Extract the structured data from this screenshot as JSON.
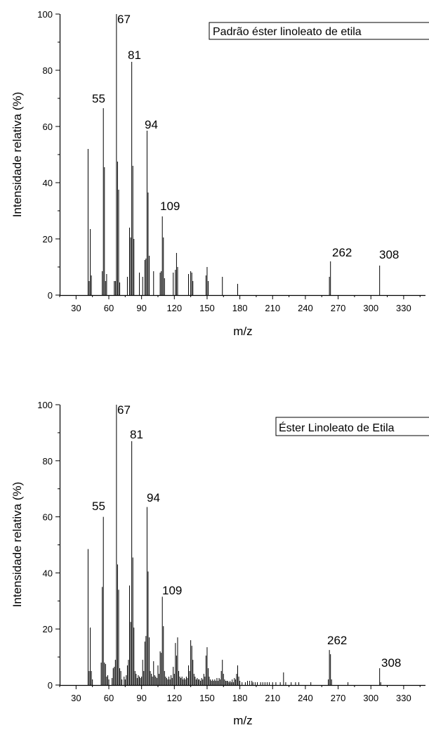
{
  "chart_data": [
    {
      "type": "bar",
      "xlabel": "m/z",
      "ylabel": "Intensidade relativa (%)",
      "xlim": [
        15,
        350
      ],
      "ylim": [
        0,
        100
      ],
      "x_ticks": [
        30,
        60,
        90,
        120,
        150,
        180,
        210,
        240,
        270,
        300,
        330
      ],
      "y_ticks": [
        0,
        20,
        40,
        60,
        80,
        100
      ],
      "legend": "Padrão éster linoleato de etila",
      "legend_placement": "top-right",
      "grid": false,
      "peak_labels": [
        "67",
        "81",
        "55",
        "94",
        "109",
        "262",
        "308"
      ],
      "peaks": [
        {
          "x": 41,
          "y": 52
        },
        {
          "x": 42,
          "y": 5
        },
        {
          "x": 43,
          "y": 23.5
        },
        {
          "x": 44,
          "y": 7
        },
        {
          "x": 54,
          "y": 8.5
        },
        {
          "x": 55,
          "y": 66.5
        },
        {
          "x": 56,
          "y": 45.5
        },
        {
          "x": 57,
          "y": 5
        },
        {
          "x": 58,
          "y": 7.5
        },
        {
          "x": 65,
          "y": 5
        },
        {
          "x": 66,
          "y": 5
        },
        {
          "x": 67,
          "y": 100
        },
        {
          "x": 68,
          "y": 47.5
        },
        {
          "x": 69,
          "y": 37.5
        },
        {
          "x": 70,
          "y": 4.5
        },
        {
          "x": 77,
          "y": 6.5
        },
        {
          "x": 79,
          "y": 24
        },
        {
          "x": 80,
          "y": 20.5
        },
        {
          "x": 81,
          "y": 83
        },
        {
          "x": 82,
          "y": 46
        },
        {
          "x": 83,
          "y": 20
        },
        {
          "x": 88,
          "y": 8
        },
        {
          "x": 91,
          "y": 6.5
        },
        {
          "x": 93,
          "y": 12.5
        },
        {
          "x": 94,
          "y": 13
        },
        {
          "x": 95,
          "y": 58.5
        },
        {
          "x": 96,
          "y": 36.5
        },
        {
          "x": 97,
          "y": 14
        },
        {
          "x": 101,
          "y": 8.5
        },
        {
          "x": 107,
          "y": 8
        },
        {
          "x": 108,
          "y": 8.5
        },
        {
          "x": 109,
          "y": 28
        },
        {
          "x": 110,
          "y": 20.5
        },
        {
          "x": 111,
          "y": 6
        },
        {
          "x": 119,
          "y": 8
        },
        {
          "x": 121,
          "y": 9
        },
        {
          "x": 122,
          "y": 15
        },
        {
          "x": 123,
          "y": 10
        },
        {
          "x": 133,
          "y": 7.5
        },
        {
          "x": 135,
          "y": 8.5
        },
        {
          "x": 136,
          "y": 8
        },
        {
          "x": 137,
          "y": 5
        },
        {
          "x": 149,
          "y": 7
        },
        {
          "x": 150,
          "y": 10
        },
        {
          "x": 151,
          "y": 5
        },
        {
          "x": 164,
          "y": 6.5
        },
        {
          "x": 178,
          "y": 4
        },
        {
          "x": 262,
          "y": 6.5
        },
        {
          "x": 263,
          "y": 12
        },
        {
          "x": 308,
          "y": 10.5
        }
      ]
    },
    {
      "type": "bar",
      "xlabel": "m/z",
      "ylabel": "Intensidade relativa (%)",
      "xlim": [
        15,
        350
      ],
      "ylim": [
        0,
        100
      ],
      "x_ticks": [
        30,
        60,
        90,
        120,
        150,
        180,
        210,
        240,
        270,
        300,
        330
      ],
      "y_ticks": [
        0,
        20,
        40,
        60,
        80,
        100
      ],
      "legend": "Éster Linoleato de Etila",
      "legend_placement": "top-right",
      "grid": false,
      "peak_labels": [
        "67",
        "81",
        "55",
        "94",
        "109",
        "262",
        "308"
      ],
      "peaks": [
        {
          "x": 41,
          "y": 48.5
        },
        {
          "x": 42,
          "y": 5
        },
        {
          "x": 43,
          "y": 20.5
        },
        {
          "x": 44,
          "y": 5
        },
        {
          "x": 45,
          "y": 2
        },
        {
          "x": 53,
          "y": 8
        },
        {
          "x": 54,
          "y": 35
        },
        {
          "x": 55,
          "y": 60
        },
        {
          "x": 56,
          "y": 8
        },
        {
          "x": 57,
          "y": 7.5
        },
        {
          "x": 58,
          "y": 3
        },
        {
          "x": 59,
          "y": 3.5
        },
        {
          "x": 60,
          "y": 2
        },
        {
          "x": 63,
          "y": 2.5
        },
        {
          "x": 64,
          "y": 6
        },
        {
          "x": 65,
          "y": 6.5
        },
        {
          "x": 66,
          "y": 9
        },
        {
          "x": 67,
          "y": 100
        },
        {
          "x": 68,
          "y": 43
        },
        {
          "x": 69,
          "y": 34
        },
        {
          "x": 70,
          "y": 6
        },
        {
          "x": 71,
          "y": 5
        },
        {
          "x": 72,
          "y": 2
        },
        {
          "x": 74,
          "y": 3
        },
        {
          "x": 75,
          "y": 2
        },
        {
          "x": 76,
          "y": 3.5
        },
        {
          "x": 77,
          "y": 7
        },
        {
          "x": 78,
          "y": 9
        },
        {
          "x": 79,
          "y": 35.5
        },
        {
          "x": 80,
          "y": 22.5
        },
        {
          "x": 81,
          "y": 87
        },
        {
          "x": 82,
          "y": 45.5
        },
        {
          "x": 83,
          "y": 20.5
        },
        {
          "x": 84,
          "y": 5
        },
        {
          "x": 85,
          "y": 4
        },
        {
          "x": 86,
          "y": 2.5
        },
        {
          "x": 87,
          "y": 3.5
        },
        {
          "x": 88,
          "y": 3
        },
        {
          "x": 89,
          "y": 2.5
        },
        {
          "x": 90,
          "y": 3
        },
        {
          "x": 91,
          "y": 9
        },
        {
          "x": 92,
          "y": 5
        },
        {
          "x": 93,
          "y": 15.5
        },
        {
          "x": 94,
          "y": 17.5
        },
        {
          "x": 95,
          "y": 63.5
        },
        {
          "x": 96,
          "y": 40.5
        },
        {
          "x": 97,
          "y": 17
        },
        {
          "x": 98,
          "y": 5
        },
        {
          "x": 99,
          "y": 4
        },
        {
          "x": 100,
          "y": 3
        },
        {
          "x": 101,
          "y": 8.5
        },
        {
          "x": 102,
          "y": 3.5
        },
        {
          "x": 103,
          "y": 3
        },
        {
          "x": 104,
          "y": 2.5
        },
        {
          "x": 105,
          "y": 7
        },
        {
          "x": 106,
          "y": 4
        },
        {
          "x": 107,
          "y": 12
        },
        {
          "x": 108,
          "y": 11.5
        },
        {
          "x": 109,
          "y": 31.5
        },
        {
          "x": 110,
          "y": 21
        },
        {
          "x": 111,
          "y": 5
        },
        {
          "x": 112,
          "y": 3
        },
        {
          "x": 113,
          "y": 2.5
        },
        {
          "x": 114,
          "y": 2
        },
        {
          "x": 115,
          "y": 3
        },
        {
          "x": 116,
          "y": 2
        },
        {
          "x": 117,
          "y": 3.5
        },
        {
          "x": 118,
          "y": 2.5
        },
        {
          "x": 119,
          "y": 6.5
        },
        {
          "x": 120,
          "y": 4
        },
        {
          "x": 121,
          "y": 15
        },
        {
          "x": 122,
          "y": 10.5
        },
        {
          "x": 123,
          "y": 17
        },
        {
          "x": 124,
          "y": 5
        },
        {
          "x": 125,
          "y": 3
        },
        {
          "x": 126,
          "y": 2.5
        },
        {
          "x": 127,
          "y": 3
        },
        {
          "x": 128,
          "y": 2
        },
        {
          "x": 129,
          "y": 2.5
        },
        {
          "x": 130,
          "y": 2
        },
        {
          "x": 131,
          "y": 3
        },
        {
          "x": 132,
          "y": 2.5
        },
        {
          "x": 133,
          "y": 7
        },
        {
          "x": 134,
          "y": 5
        },
        {
          "x": 135,
          "y": 16
        },
        {
          "x": 136,
          "y": 14
        },
        {
          "x": 137,
          "y": 9
        },
        {
          "x": 138,
          "y": 4
        },
        {
          "x": 139,
          "y": 3
        },
        {
          "x": 140,
          "y": 2
        },
        {
          "x": 141,
          "y": 2.5
        },
        {
          "x": 142,
          "y": 2
        },
        {
          "x": 143,
          "y": 2
        },
        {
          "x": 144,
          "y": 1.5
        },
        {
          "x": 145,
          "y": 2.5
        },
        {
          "x": 146,
          "y": 2
        },
        {
          "x": 147,
          "y": 4
        },
        {
          "x": 148,
          "y": 3
        },
        {
          "x": 149,
          "y": 10.5
        },
        {
          "x": 150,
          "y": 13.5
        },
        {
          "x": 151,
          "y": 6
        },
        {
          "x": 152,
          "y": 3
        },
        {
          "x": 153,
          "y": 2
        },
        {
          "x": 154,
          "y": 1.5
        },
        {
          "x": 155,
          "y": 2
        },
        {
          "x": 156,
          "y": 1.5
        },
        {
          "x": 157,
          "y": 2
        },
        {
          "x": 158,
          "y": 1.5
        },
        {
          "x": 159,
          "y": 2.5
        },
        {
          "x": 160,
          "y": 1.5
        },
        {
          "x": 161,
          "y": 2.5
        },
        {
          "x": 162,
          "y": 2
        },
        {
          "x": 163,
          "y": 5
        },
        {
          "x": 164,
          "y": 9
        },
        {
          "x": 165,
          "y": 4
        },
        {
          "x": 166,
          "y": 2
        },
        {
          "x": 167,
          "y": 1.5
        },
        {
          "x": 168,
          "y": 1.5
        },
        {
          "x": 169,
          "y": 1.5
        },
        {
          "x": 170,
          "y": 1
        },
        {
          "x": 171,
          "y": 1.5
        },
        {
          "x": 172,
          "y": 1
        },
        {
          "x": 173,
          "y": 2
        },
        {
          "x": 174,
          "y": 1
        },
        {
          "x": 175,
          "y": 2.5
        },
        {
          "x": 176,
          "y": 2
        },
        {
          "x": 177,
          "y": 4
        },
        {
          "x": 178,
          "y": 7
        },
        {
          "x": 179,
          "y": 3
        },
        {
          "x": 180,
          "y": 1.5
        },
        {
          "x": 182,
          "y": 1
        },
        {
          "x": 185,
          "y": 1
        },
        {
          "x": 187,
          "y": 1.5
        },
        {
          "x": 189,
          "y": 1.5
        },
        {
          "x": 191,
          "y": 1.5
        },
        {
          "x": 192,
          "y": 1
        },
        {
          "x": 194,
          "y": 1
        },
        {
          "x": 196,
          "y": 1
        },
        {
          "x": 199,
          "y": 1
        },
        {
          "x": 201,
          "y": 1
        },
        {
          "x": 203,
          "y": 1
        },
        {
          "x": 205,
          "y": 1
        },
        {
          "x": 207,
          "y": 1
        },
        {
          "x": 210,
          "y": 1
        },
        {
          "x": 213,
          "y": 1
        },
        {
          "x": 217,
          "y": 1
        },
        {
          "x": 220,
          "y": 4.5
        },
        {
          "x": 222,
          "y": 1
        },
        {
          "x": 227,
          "y": 1
        },
        {
          "x": 231,
          "y": 1
        },
        {
          "x": 234,
          "y": 1
        },
        {
          "x": 245,
          "y": 1
        },
        {
          "x": 261,
          "y": 2
        },
        {
          "x": 262,
          "y": 12.5
        },
        {
          "x": 263,
          "y": 11
        },
        {
          "x": 264,
          "y": 2
        },
        {
          "x": 279,
          "y": 1
        },
        {
          "x": 308,
          "y": 6
        },
        {
          "x": 309,
          "y": 1
        }
      ]
    }
  ]
}
